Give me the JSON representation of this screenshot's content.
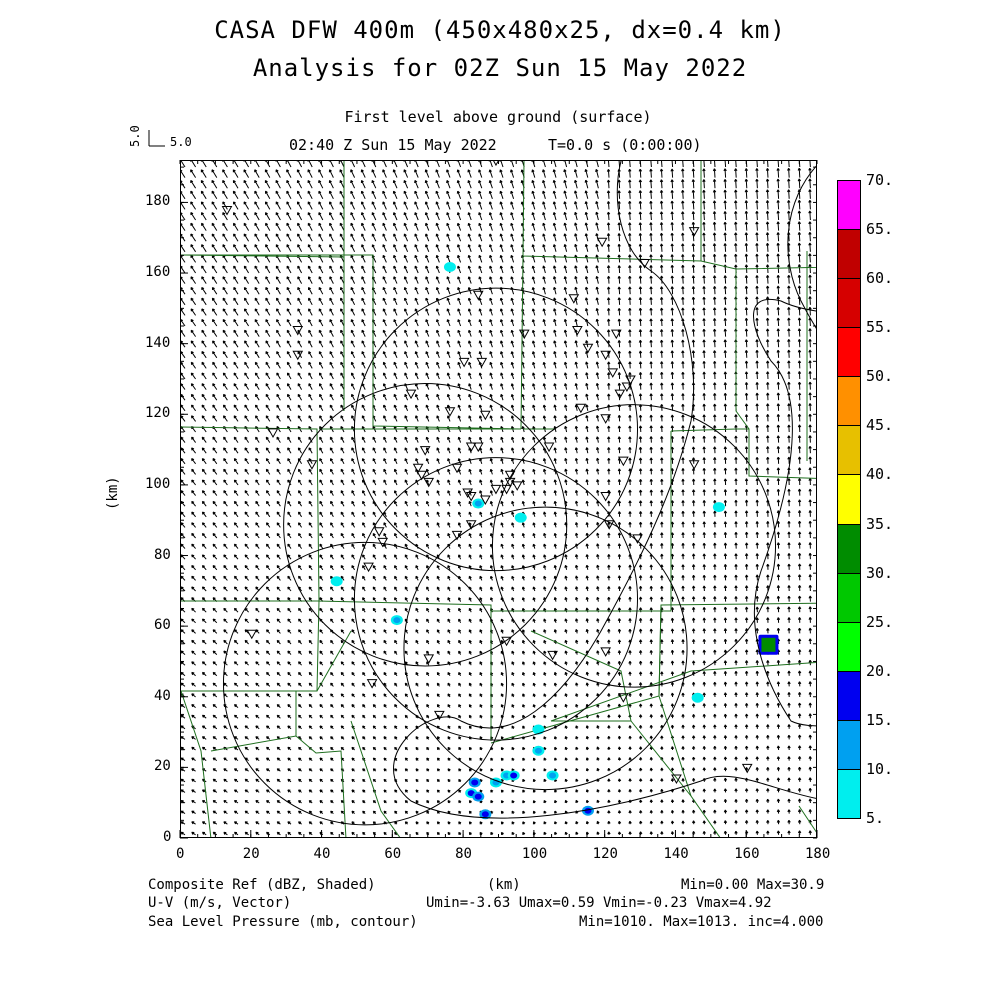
{
  "header": {
    "title_line1": "CASA DFW 400m (450x480x25, dx=0.4 km)",
    "title_line2": "Analysis for 02Z Sun 15 May 2022",
    "level": "First level above ground (surface)",
    "valid_time": "02:40 Z Sun 15 May 2022",
    "model_time": "T=0.0 s (0:00:00)",
    "vector_ref_vertical": "5.0",
    "vector_ref_horizontal": "5.0"
  },
  "axes": {
    "x_label": "(km)",
    "y_label": "(km)",
    "x_ticks": [
      "0",
      "20",
      "40",
      "60",
      "80",
      "100",
      "120",
      "140",
      "160",
      "180"
    ],
    "y_ticks": [
      "0",
      "20",
      "40",
      "60",
      "80",
      "100",
      "120",
      "140",
      "160",
      "180"
    ],
    "xlim": [
      0,
      180
    ],
    "ylim": [
      0,
      192
    ]
  },
  "colorbar": {
    "levels": [
      "5.",
      "10.",
      "15.",
      "20.",
      "25.",
      "30.",
      "35.",
      "40.",
      "45.",
      "50.",
      "55.",
      "60.",
      "65.",
      "70."
    ],
    "colors": [
      "#00eeee",
      "#00a0f0",
      "#0000f0",
      "#00ff00",
      "#00c800",
      "#008c00",
      "#ffff00",
      "#e7c000",
      "#ff9000",
      "#ff0000",
      "#d60000",
      "#c00000",
      "#ff00ff"
    ]
  },
  "footer": {
    "field1_name": "Composite Ref (dBZ, Shaded)",
    "field1_stats": "Min=0.00 Max=30.9",
    "field2_name": "U-V (m/s, Vector)",
    "field2_stats": "Umin=-3.63 Umax=0.59 Vmin=-0.23 Vmax=4.92",
    "field3_name": "Sea Level Pressure (mb, contour)",
    "field3_stats": "Min=1010. Max=1013. inc=4.000",
    "x_axis_unit": "(km)"
  },
  "map": {
    "radar_rings_km": [
      {
        "center": [
          52,
          44
        ],
        "radius": 40
      },
      {
        "center": [
          69,
          89
        ],
        "radius": 40
      },
      {
        "center": [
          89,
          116
        ],
        "radius": 40
      },
      {
        "center": [
          103,
          54
        ],
        "radius": 40
      },
      {
        "center": [
          89,
          68
        ],
        "radius": 40
      },
      {
        "center": [
          128,
          83
        ],
        "radius": 40
      }
    ],
    "echoes": [
      {
        "x": 83,
        "y": 16,
        "dbz": 17
      },
      {
        "x": 82,
        "y": 13,
        "dbz": 15
      },
      {
        "x": 84,
        "y": 12,
        "dbz": 17
      },
      {
        "x": 86,
        "y": 7,
        "dbz": 17
      },
      {
        "x": 89,
        "y": 16,
        "dbz": 12
      },
      {
        "x": 92,
        "y": 18,
        "dbz": 14
      },
      {
        "x": 94,
        "y": 18,
        "dbz": 15
      },
      {
        "x": 101,
        "y": 25,
        "dbz": 14
      },
      {
        "x": 105,
        "y": 18,
        "dbz": 12
      },
      {
        "x": 115,
        "y": 8,
        "dbz": 16
      },
      {
        "x": 166,
        "y": 55,
        "dbz": 30.9
      },
      {
        "x": 146,
        "y": 40,
        "dbz": 10
      },
      {
        "x": 84,
        "y": 95,
        "dbz": 14
      },
      {
        "x": 61,
        "y": 62,
        "dbz": 13
      },
      {
        "x": 96,
        "y": 91,
        "dbz": 10
      },
      {
        "x": 76,
        "y": 162,
        "dbz": 8
      },
      {
        "x": 44,
        "y": 73,
        "dbz": 8
      },
      {
        "x": 101,
        "y": 31,
        "dbz": 10
      },
      {
        "x": 152,
        "y": 94,
        "dbz": 7
      }
    ],
    "stations": [
      [
        13,
        178
      ],
      [
        89,
        192
      ],
      [
        119,
        169
      ],
      [
        145,
        172
      ],
      [
        131,
        163
      ],
      [
        84,
        154
      ],
      [
        111,
        153
      ],
      [
        33,
        144
      ],
      [
        97,
        143
      ],
      [
        112,
        144
      ],
      [
        123,
        143
      ],
      [
        33,
        137
      ],
      [
        80,
        135
      ],
      [
        85,
        135
      ],
      [
        115,
        139
      ],
      [
        120,
        137
      ],
      [
        122,
        132
      ],
      [
        127,
        130
      ],
      [
        126,
        128
      ],
      [
        124,
        126
      ],
      [
        65,
        126
      ],
      [
        76,
        121
      ],
      [
        86,
        120
      ],
      [
        113,
        122
      ],
      [
        120,
        119
      ],
      [
        26,
        115
      ],
      [
        82,
        111
      ],
      [
        84,
        111
      ],
      [
        69,
        110
      ],
      [
        104,
        111
      ],
      [
        37,
        106
      ],
      [
        67,
        105
      ],
      [
        68,
        103
      ],
      [
        70,
        101
      ],
      [
        78,
        105
      ],
      [
        93,
        103
      ],
      [
        93,
        101
      ],
      [
        125,
        107
      ],
      [
        145,
        106
      ],
      [
        89,
        99
      ],
      [
        92,
        99
      ],
      [
        81,
        98
      ],
      [
        82,
        97
      ],
      [
        86,
        96
      ],
      [
        95,
        100
      ],
      [
        120,
        97
      ],
      [
        82,
        89
      ],
      [
        78,
        86
      ],
      [
        56,
        87
      ],
      [
        121,
        89
      ],
      [
        57,
        84
      ],
      [
        129,
        85
      ],
      [
        53,
        77
      ],
      [
        20,
        58
      ],
      [
        70,
        51
      ],
      [
        92,
        56
      ],
      [
        105,
        52
      ],
      [
        120,
        53
      ],
      [
        54,
        44
      ],
      [
        125,
        40
      ],
      [
        73,
        35
      ],
      [
        160,
        20
      ],
      [
        140,
        17
      ]
    ]
  }
}
